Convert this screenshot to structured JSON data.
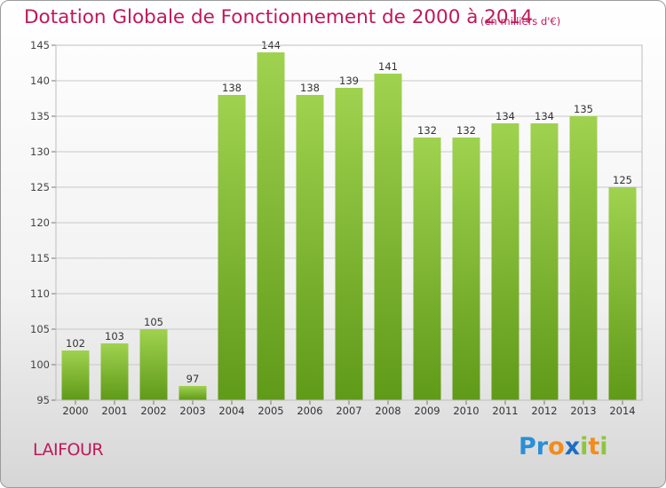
{
  "title": "Dotation Globale de Fonctionnement de 2000 à 2014",
  "unit_note": "(en milliers d'€)",
  "commune": "LAIFOUR",
  "logo": {
    "letters": [
      {
        "ch": "P",
        "color": "#2a8fd6"
      },
      {
        "ch": "r",
        "color": "#2a8fd6"
      },
      {
        "ch": "o",
        "color": "#f28c1c"
      },
      {
        "ch": "x",
        "color": "#1a6fc4"
      },
      {
        "ch": "i",
        "color": "#8cc63f"
      },
      {
        "ch": "t",
        "color": "#f28c1c"
      },
      {
        "ch": "i",
        "color": "#8cc63f"
      }
    ]
  },
  "chart_data": {
    "type": "bar",
    "categories": [
      "2000",
      "2001",
      "2002",
      "2003",
      "2004",
      "2005",
      "2006",
      "2007",
      "2008",
      "2009",
      "2010",
      "2011",
      "2012",
      "2013",
      "2014"
    ],
    "values": [
      102,
      103,
      105,
      97,
      138,
      144,
      138,
      139,
      141,
      132,
      132,
      134,
      134,
      135,
      125
    ],
    "ylim": [
      95,
      145
    ],
    "yticks": [
      95,
      100,
      105,
      110,
      115,
      120,
      125,
      130,
      135,
      140,
      145
    ],
    "grid": true,
    "bar_color_top": "#9fd24f",
    "bar_color_bottom": "#5f9a18",
    "xlabel": "",
    "ylabel": ""
  }
}
